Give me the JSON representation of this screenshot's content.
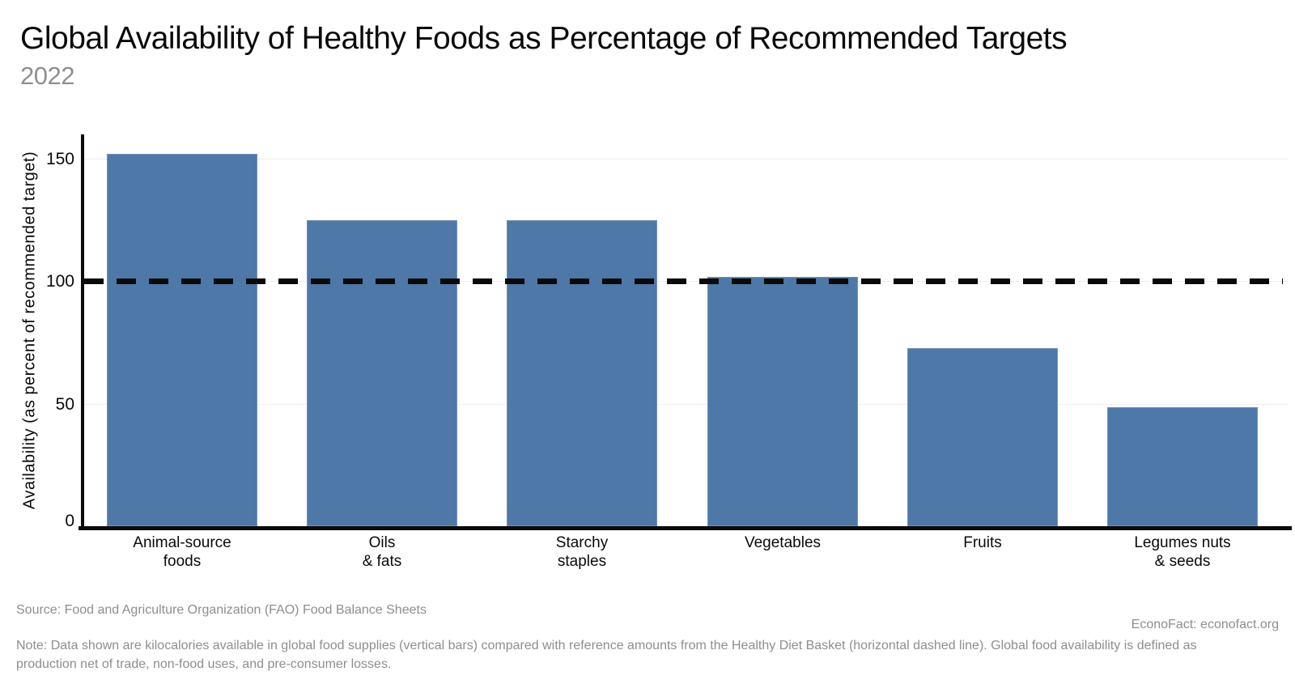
{
  "header": {
    "title": "Global Availability of Healthy Foods as Percentage of Recommended Targets",
    "subtitle": "2022"
  },
  "footer": {
    "source": "Source: Food and Agriculture Organization (FAO) Food Balance Sheets",
    "credit": "EconoFact: econofact.org",
    "note": "Note: Data shown are kilocalories available in global food supplies (vertical bars) compared with reference amounts from the Healthy Diet Basket (horizontal dashed line). Global food availability is defined as production net of trade, non-food uses, and pre-consumer losses."
  },
  "chart_data": {
    "type": "bar",
    "title": "Global Availability of Healthy Foods as Percentage of Recommended Targets",
    "subtitle": "2022",
    "categories": [
      "Animal-source foods",
      "Oils & fats",
      "Starchy staples",
      "Vegetables",
      "Fruits",
      "Legumes nuts & seeds"
    ],
    "category_lines": [
      [
        "Animal-source",
        "foods"
      ],
      [
        "Oils",
        "& fats"
      ],
      [
        "Starchy",
        "staples"
      ],
      [
        "Vegetables"
      ],
      [
        "Fruits"
      ],
      [
        "Legumes nuts",
        "& seeds"
      ]
    ],
    "values": [
      152,
      125,
      125,
      102,
      73,
      49
    ],
    "xlabel": "",
    "ylabel": "Availability (as percent of recommended target)",
    "yticks": [
      0,
      50,
      100,
      150
    ],
    "ylim": [
      0,
      160
    ],
    "grid": "horizontal-light",
    "legend": "none",
    "reference_line": {
      "value": 100,
      "style": "dashed",
      "color": "#0a0a0a"
    },
    "bar_color": "#4d78a8"
  }
}
